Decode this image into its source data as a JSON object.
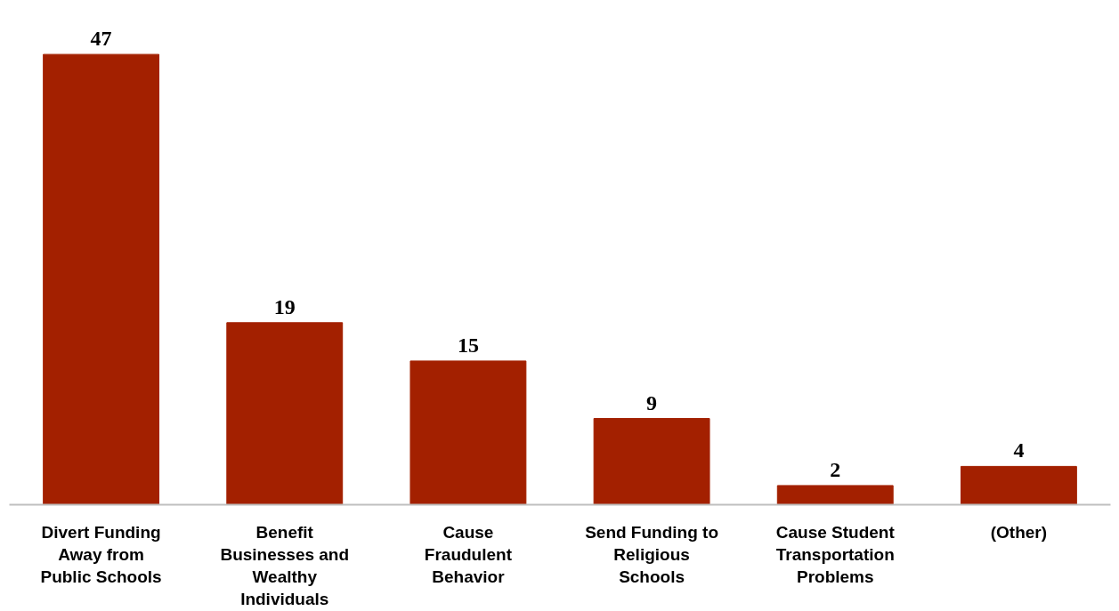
{
  "chart_data": {
    "type": "bar",
    "categories": [
      "Divert Funding Away from Public Schools",
      "Benefit Businesses and Wealthy Individuals",
      "Cause Fraudulent Behavior",
      "Send Funding to Religious Schools",
      "Cause Student Transportation Problems",
      "(Other)"
    ],
    "values": [
      47,
      19,
      15,
      9,
      2,
      4
    ],
    "color": "#a32000",
    "data_labels": true
  }
}
